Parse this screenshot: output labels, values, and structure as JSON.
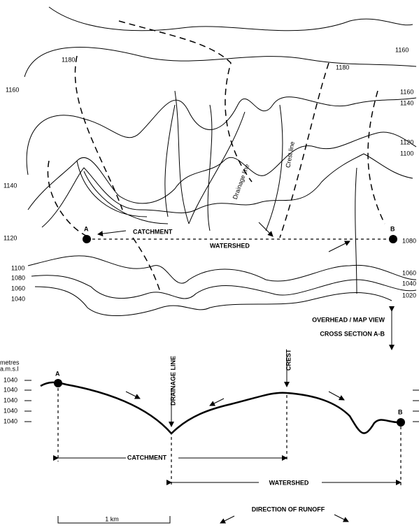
{
  "map": {
    "contour_labels": [
      "1160",
      "1180",
      "1180",
      "1160",
      "1160",
      "1140",
      "1120",
      "1100",
      "1140",
      "1120",
      "1080",
      "1100",
      "1080",
      "1060",
      "1040",
      "1060",
      "1040",
      "1020"
    ],
    "point_a": "A",
    "point_b": "B",
    "catchment": "CATCHMENT",
    "watershed": "WATERSHED",
    "drainage_line": "Drainage line",
    "crest_line": "Crest line"
  },
  "view_labels": [
    "OVERHEAD / MAP VIEW",
    "CROSS SECTION A-B"
  ],
  "cross_section": {
    "axis_label": [
      "metres",
      "a.m.s.l"
    ],
    "elevation_labels": [
      "1040",
      "1040",
      "1040",
      "1040",
      "1040"
    ],
    "point_a": "A",
    "point_b": "B",
    "drainage_line": "DRAINAGE LINE",
    "crest": "CREST",
    "catchment": "CATCHMENT",
    "watershed": "WATERSHED"
  },
  "scale": "1 km",
  "legend": "DIRECTION OF RUNOFF"
}
